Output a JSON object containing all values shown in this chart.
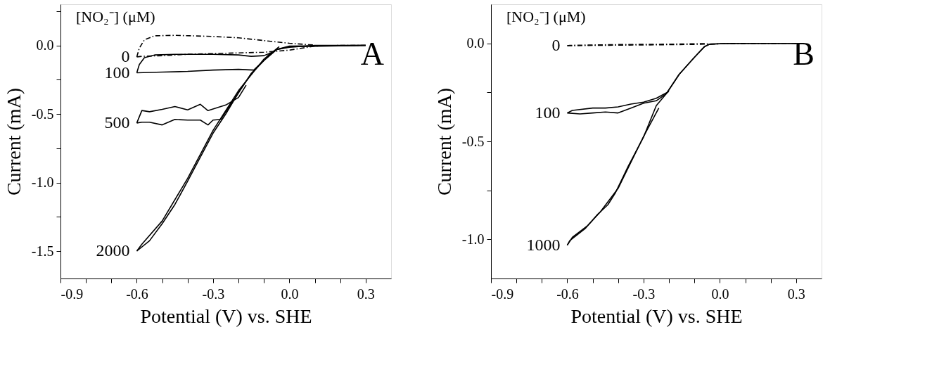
{
  "chart_data": [
    {
      "type": "line",
      "xlabel": "Potential (V) vs. SHE",
      "ylabel": "Current (mA)",
      "legend_title": "[NO₂⁻] (μM)",
      "annotations": [
        "A"
      ],
      "xlim": [
        -0.9,
        0.4
      ],
      "ylim": [
        -1.7,
        0.3
      ],
      "xticks": [
        -0.9,
        {
          "value": -0.8,
          "label": null
        },
        {
          "value": -0.7,
          "label": null
        },
        -0.6,
        {
          "value": -0.5,
          "label": null
        },
        {
          "value": -0.4,
          "label": null
        },
        -0.3,
        {
          "value": -0.2,
          "label": null
        },
        {
          "value": -0.1,
          "label": null
        },
        {
          "value": 0,
          "label": "0.0"
        },
        {
          "value": 0.1,
          "label": null
        },
        {
          "value": 0.2,
          "label": null
        },
        0.3
      ],
      "yticks": [
        {
          "value": -1.5,
          "label": "-1.5"
        },
        {
          "value": -1.25,
          "label": null
        },
        {
          "value": -1.0,
          "label": "-1.0"
        },
        {
          "value": -0.75,
          "label": null
        },
        -0.5,
        {
          "value": -0.25,
          "label": null
        },
        {
          "value": 0,
          "label": "0.0"
        },
        {
          "value": 0.25,
          "label": null
        }
      ],
      "series": [
        {
          "name": "0",
          "color": "#000000",
          "line_style": "dashed",
          "x": [
            -0.6,
            -0.58,
            -0.5,
            -0.4,
            -0.3,
            -0.2,
            -0.1,
            0.0,
            0.1,
            0.2,
            0.3
          ],
          "values": [
            -0.084,
            -0.08,
            -0.075,
            -0.065,
            -0.06,
            -0.055,
            -0.05,
            -0.035,
            -0.005,
            0,
            0
          ]
        },
        {
          "color": "#000000",
          "line_style": "dashed",
          "x": [
            -0.6,
            -0.59,
            -0.57,
            -0.53,
            -0.45,
            -0.3,
            -0.2,
            -0.1,
            0.0,
            0.1
          ],
          "values": [
            -0.084,
            -0.02,
            0.04,
            0.07,
            0.073,
            0.065,
            0.055,
            0.035,
            0.015,
            0.002
          ]
        },
        {
          "name": "100",
          "color": "#000000",
          "line_style": "solid",
          "x": [
            -0.6,
            -0.5,
            -0.4,
            -0.3,
            -0.2,
            -0.14,
            -0.1,
            -0.05,
            0.0,
            0.3
          ],
          "values": [
            -0.2,
            -0.195,
            -0.19,
            -0.18,
            -0.175,
            -0.18,
            -0.11,
            -0.03,
            -0.01,
            0
          ]
        },
        {
          "color": "#000000",
          "line_style": "solid",
          "x": [
            -0.6,
            -0.59,
            -0.57,
            -0.53,
            -0.45,
            -0.3,
            -0.2,
            -0.15,
            -0.1,
            -0.06
          ],
          "values": [
            -0.2,
            -0.14,
            -0.09,
            -0.07,
            -0.065,
            -0.065,
            -0.07,
            -0.08,
            -0.075,
            -0.045
          ]
        },
        {
          "name": "500",
          "color": "#000000",
          "line_style": "solid",
          "x": [
            -0.6,
            -0.58,
            -0.55,
            -0.5,
            -0.45,
            -0.4,
            -0.35,
            -0.32,
            -0.3,
            -0.27,
            -0.2,
            -0.15,
            -0.1,
            -0.05,
            0.0,
            0.3
          ],
          "values": [
            -0.566,
            -0.56,
            -0.56,
            -0.58,
            -0.54,
            -0.545,
            -0.545,
            -0.58,
            -0.545,
            -0.54,
            -0.345,
            -0.206,
            -0.11,
            -0.03,
            -0.005,
            0
          ]
        },
        {
          "color": "#000000",
          "line_style": "solid",
          "x": [
            -0.6,
            -0.58,
            -0.55,
            -0.5,
            -0.45,
            -0.4,
            -0.35,
            -0.32,
            -0.25,
            -0.2,
            -0.17
          ],
          "values": [
            -0.566,
            -0.475,
            -0.484,
            -0.467,
            -0.446,
            -0.47,
            -0.43,
            -0.476,
            -0.435,
            -0.38,
            -0.29
          ]
        },
        {
          "name": "2000",
          "color": "#000000",
          "line_style": "solid",
          "x": [
            -0.6,
            -0.55,
            -0.5,
            -0.45,
            -0.4,
            -0.35,
            -0.3,
            -0.25,
            -0.2,
            -0.15,
            -0.1,
            -0.08,
            -0.05,
            0.0,
            0.1,
            0.3
          ],
          "values": [
            -1.5,
            -1.425,
            -1.3,
            -1.16,
            -0.99,
            -0.815,
            -0.64,
            -0.5,
            -0.345,
            -0.206,
            -0.11,
            -0.066,
            -0.03,
            -0.014,
            0,
            0
          ]
        },
        {
          "color": "#000000",
          "line_style": "solid",
          "x": [
            -0.6,
            -0.58,
            -0.5,
            -0.4,
            -0.3,
            -0.2,
            -0.1,
            -0.04
          ],
          "values": [
            -1.5,
            -1.45,
            -1.28,
            -0.97,
            -0.62,
            -0.33,
            -0.1,
            -0.01
          ]
        }
      ]
    },
    {
      "type": "line",
      "xlabel": "Potential (V) vs. SHE",
      "ylabel": "Current (mA)",
      "legend_title": "[NO₂⁻] (μM)",
      "annotations": [
        "B"
      ],
      "xlim": [
        -0.9,
        0.4
      ],
      "ylim": [
        -1.2,
        0.2
      ],
      "xticks": [
        -0.9,
        {
          "value": -0.8,
          "label": null
        },
        {
          "value": -0.7,
          "label": null
        },
        -0.6,
        {
          "value": -0.5,
          "label": null
        },
        {
          "value": -0.4,
          "label": null
        },
        -0.3,
        {
          "value": -0.2,
          "label": null
        },
        {
          "value": -0.1,
          "label": null
        },
        {
          "value": 0,
          "label": "0.0"
        },
        {
          "value": 0.1,
          "label": null
        },
        {
          "value": 0.2,
          "label": null
        },
        0.3
      ],
      "yticks": [
        {
          "value": -1.0,
          "label": "-1.0"
        },
        {
          "value": -0.75,
          "label": null
        },
        -0.5,
        {
          "value": -0.25,
          "label": null
        },
        {
          "value": 0,
          "label": "0.0"
        }
      ],
      "series": [
        {
          "name": "0",
          "color": "#000000",
          "line_style": "dashed",
          "x": [
            -0.6,
            -0.5,
            -0.3,
            -0.1,
            0.0,
            0.3
          ],
          "values": [
            -0.012,
            -0.01,
            -0.008,
            -0.005,
            -0.002,
            0
          ]
        },
        {
          "color": "#000000",
          "line_style": "dashed",
          "x": [
            -0.6,
            -0.59,
            -0.4,
            -0.2,
            -0.05
          ],
          "values": [
            -0.012,
            -0.01,
            -0.006,
            -0.004,
            -0.001
          ]
        },
        {
          "name": "100",
          "color": "#000000",
          "line_style": "solid",
          "x": [
            -0.6,
            -0.55,
            -0.5,
            -0.45,
            -0.4,
            -0.35,
            -0.3,
            -0.25,
            -0.21,
            -0.16,
            -0.1,
            -0.06,
            -0.04,
            0.0,
            0.05,
            0.3
          ],
          "values": [
            -0.355,
            -0.36,
            -0.355,
            -0.35,
            -0.355,
            -0.33,
            -0.305,
            -0.293,
            -0.256,
            -0.158,
            -0.071,
            -0.016,
            -0.004,
            -0.002,
            0,
            0
          ]
        },
        {
          "color": "#000000",
          "line_style": "solid",
          "x": [
            -0.6,
            -0.58,
            -0.5,
            -0.45,
            -0.4,
            -0.35,
            -0.3,
            -0.25,
            -0.2
          ],
          "values": [
            -0.355,
            -0.342,
            -0.33,
            -0.33,
            -0.324,
            -0.31,
            -0.3,
            -0.28,
            -0.245
          ]
        },
        {
          "name": "1000",
          "color": "#000000",
          "line_style": "solid",
          "x": [
            -0.6,
            -0.59,
            -0.53,
            -0.48,
            -0.44,
            -0.41,
            -0.36,
            -0.3,
            -0.25,
            -0.21,
            -0.16,
            -0.1,
            -0.06,
            -0.04,
            0.0,
            0.05,
            0.3
          ],
          "values": [
            -1.03,
            -1.007,
            -0.946,
            -0.872,
            -0.823,
            -0.761,
            -0.626,
            -0.478,
            -0.318,
            -0.256,
            -0.158,
            -0.071,
            -0.016,
            -0.004,
            -0.002,
            0,
            0
          ]
        },
        {
          "color": "#000000",
          "line_style": "solid",
          "x": [
            -0.6,
            -0.58,
            -0.52,
            -0.47,
            -0.4,
            -0.3,
            -0.24
          ],
          "values": [
            -1.03,
            -0.99,
            -0.93,
            -0.86,
            -0.74,
            -0.475,
            -0.33
          ]
        }
      ]
    }
  ]
}
